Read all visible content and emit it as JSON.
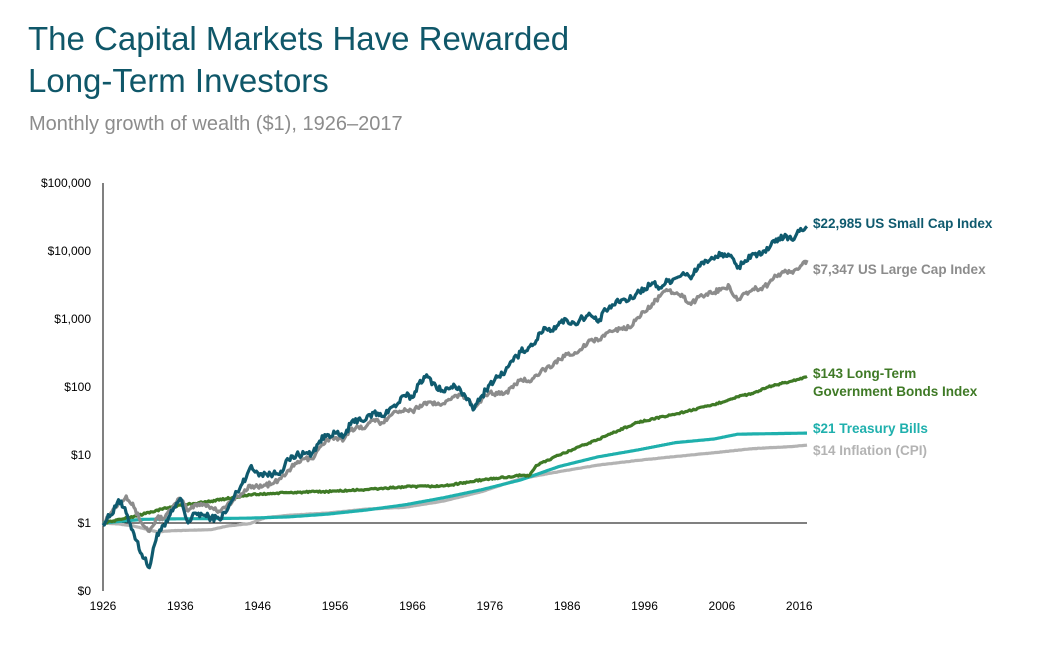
{
  "header": {
    "title_line1": "The Capital Markets Have Rewarded",
    "title_line2": "Long-Term Investors",
    "subtitle": "Monthly growth of wealth ($1), 1926–2017"
  },
  "colors": {
    "small_cap": "#0f5a6e",
    "large_cap": "#8c8c8c",
    "bonds": "#3f7a26",
    "tbills": "#1fb0ad",
    "inflation": "#b3b3b3"
  },
  "chart_data": {
    "type": "line",
    "y_scale": "log",
    "ylim": [
      0.1,
      100000
    ],
    "xlim": [
      1926,
      2017
    ],
    "y_ticks": [
      {
        "value": 100000,
        "label": "$100,000"
      },
      {
        "value": 10000,
        "label": "$10,000"
      },
      {
        "value": 1000,
        "label": "$1,000"
      },
      {
        "value": 100,
        "label": "$100"
      },
      {
        "value": 10,
        "label": "$10"
      },
      {
        "value": 1,
        "label": "$1"
      },
      {
        "value": 0.1,
        "label": "$0"
      }
    ],
    "x_ticks": [
      "1926",
      "1936",
      "1946",
      "1956",
      "1966",
      "1976",
      "1986",
      "1996",
      "2006",
      "2016"
    ],
    "series": [
      {
        "key": "small_cap",
        "label_lines": [
          "$22,985 US Small Cap Index"
        ],
        "points": [
          [
            1926,
            1
          ],
          [
            1927,
            1.3
          ],
          [
            1928,
            2.2
          ],
          [
            1929,
            1.4
          ],
          [
            1930,
            0.7
          ],
          [
            1931,
            0.35
          ],
          [
            1932,
            0.22
          ],
          [
            1933,
            0.7
          ],
          [
            1934,
            0.9
          ],
          [
            1935,
            1.5
          ],
          [
            1936,
            2.3
          ],
          [
            1937,
            1.0
          ],
          [
            1938,
            1.4
          ],
          [
            1939,
            1.3
          ],
          [
            1940,
            1.2
          ],
          [
            1941,
            1.15
          ],
          [
            1942,
            1.5
          ],
          [
            1943,
            2.5
          ],
          [
            1944,
            3.8
          ],
          [
            1945,
            6.5
          ],
          [
            1946,
            5.5
          ],
          [
            1947,
            5.3
          ],
          [
            1948,
            5.2
          ],
          [
            1949,
            5.8
          ],
          [
            1950,
            8.5
          ],
          [
            1951,
            10
          ],
          [
            1952,
            10.5
          ],
          [
            1953,
            10.5
          ],
          [
            1954,
            16
          ],
          [
            1955,
            20
          ],
          [
            1956,
            21
          ],
          [
            1957,
            18
          ],
          [
            1958,
            28
          ],
          [
            1959,
            34
          ],
          [
            1960,
            33
          ],
          [
            1961,
            42
          ],
          [
            1962,
            37
          ],
          [
            1963,
            47
          ],
          [
            1964,
            55
          ],
          [
            1965,
            75
          ],
          [
            1966,
            70
          ],
          [
            1967,
            125
          ],
          [
            1968,
            140
          ],
          [
            1969,
            105
          ],
          [
            1970,
            85
          ],
          [
            1971,
            100
          ],
          [
            1972,
            100
          ],
          [
            1973,
            65
          ],
          [
            1974,
            48
          ],
          [
            1975,
            75
          ],
          [
            1976,
            110
          ],
          [
            1977,
            140
          ],
          [
            1978,
            170
          ],
          [
            1979,
            240
          ],
          [
            1980,
            330
          ],
          [
            1981,
            380
          ],
          [
            1982,
            480
          ],
          [
            1983,
            750
          ],
          [
            1984,
            680
          ],
          [
            1985,
            900
          ],
          [
            1986,
            950
          ],
          [
            1987,
            850
          ],
          [
            1988,
            1050
          ],
          [
            1989,
            1150
          ],
          [
            1990,
            900
          ],
          [
            1991,
            1350
          ],
          [
            1992,
            1600
          ],
          [
            1993,
            1900
          ],
          [
            1994,
            1900
          ],
          [
            1995,
            2400
          ],
          [
            1996,
            2800
          ],
          [
            1997,
            3400
          ],
          [
            1998,
            2900
          ],
          [
            1999,
            3600
          ],
          [
            2000,
            4000
          ],
          [
            2001,
            4800
          ],
          [
            2002,
            3900
          ],
          [
            2003,
            6200
          ],
          [
            2004,
            7200
          ],
          [
            2005,
            7600
          ],
          [
            2006,
            9200
          ],
          [
            2007,
            8500
          ],
          [
            2008,
            5600
          ],
          [
            2009,
            7200
          ],
          [
            2010,
            9200
          ],
          [
            2011,
            8700
          ],
          [
            2012,
            10400
          ],
          [
            2013,
            15000
          ],
          [
            2014,
            15800
          ],
          [
            2015,
            14800
          ],
          [
            2016,
            19500
          ],
          [
            2017,
            22985
          ]
        ]
      },
      {
        "key": "large_cap",
        "label_lines": [
          "$7,347 US Large Cap Index"
        ],
        "points": [
          [
            1926,
            1
          ],
          [
            1927,
            1.4
          ],
          [
            1928,
            2.0
          ],
          [
            1929,
            2.5
          ],
          [
            1930,
            1.7
          ],
          [
            1931,
            1.0
          ],
          [
            1932,
            0.75
          ],
          [
            1933,
            1.2
          ],
          [
            1934,
            1.2
          ],
          [
            1935,
            1.7
          ],
          [
            1936,
            2.3
          ],
          [
            1937,
            1.5
          ],
          [
            1938,
            1.9
          ],
          [
            1939,
            1.9
          ],
          [
            1940,
            1.7
          ],
          [
            1941,
            1.5
          ],
          [
            1942,
            1.8
          ],
          [
            1943,
            2.2
          ],
          [
            1944,
            2.7
          ],
          [
            1945,
            3.6
          ],
          [
            1946,
            3.4
          ],
          [
            1947,
            3.6
          ],
          [
            1948,
            3.8
          ],
          [
            1949,
            4.5
          ],
          [
            1950,
            6.0
          ],
          [
            1951,
            7.5
          ],
          [
            1952,
            8.8
          ],
          [
            1953,
            8.8
          ],
          [
            1954,
            13
          ],
          [
            1955,
            17
          ],
          [
            1956,
            18
          ],
          [
            1957,
            16
          ],
          [
            1958,
            23
          ],
          [
            1959,
            26
          ],
          [
            1960,
            26
          ],
          [
            1961,
            33
          ],
          [
            1962,
            30
          ],
          [
            1963,
            37
          ],
          [
            1964,
            43
          ],
          [
            1965,
            48
          ],
          [
            1966,
            44
          ],
          [
            1967,
            54
          ],
          [
            1968,
            60
          ],
          [
            1969,
            55
          ],
          [
            1970,
            57
          ],
          [
            1971,
            66
          ],
          [
            1972,
            78
          ],
          [
            1973,
            67
          ],
          [
            1974,
            50
          ],
          [
            1975,
            68
          ],
          [
            1976,
            84
          ],
          [
            1977,
            78
          ],
          [
            1978,
            83
          ],
          [
            1979,
            98
          ],
          [
            1980,
            130
          ],
          [
            1981,
            123
          ],
          [
            1982,
            150
          ],
          [
            1983,
            183
          ],
          [
            1984,
            195
          ],
          [
            1985,
            256
          ],
          [
            1986,
            303
          ],
          [
            1987,
            320
          ],
          [
            1988,
            373
          ],
          [
            1989,
            491
          ],
          [
            1990,
            476
          ],
          [
            1991,
            621
          ],
          [
            1992,
            668
          ],
          [
            1993,
            735
          ],
          [
            1994,
            745
          ],
          [
            1995,
            1025
          ],
          [
            1996,
            1260
          ],
          [
            1997,
            1680
          ],
          [
            1998,
            2160
          ],
          [
            1999,
            2620
          ],
          [
            2000,
            2380
          ],
          [
            2001,
            2100
          ],
          [
            2002,
            1640
          ],
          [
            2003,
            2110
          ],
          [
            2004,
            2340
          ],
          [
            2005,
            2450
          ],
          [
            2006,
            2840
          ],
          [
            2007,
            3000
          ],
          [
            2008,
            1890
          ],
          [
            2009,
            2390
          ],
          [
            2010,
            2750
          ],
          [
            2011,
            2810
          ],
          [
            2012,
            3260
          ],
          [
            2013,
            4310
          ],
          [
            2014,
            4900
          ],
          [
            2015,
            4970
          ],
          [
            2016,
            5560
          ],
          [
            2017,
            7347
          ]
        ]
      },
      {
        "key": "bonds",
        "label_lines": [
          "$143 Long-Term",
          "Government Bonds Index"
        ],
        "points": [
          [
            1926,
            1
          ],
          [
            1930,
            1.25
          ],
          [
            1935,
            1.75
          ],
          [
            1940,
            2.1
          ],
          [
            1945,
            2.6
          ],
          [
            1950,
            2.8
          ],
          [
            1955,
            2.9
          ],
          [
            1960,
            3.1
          ],
          [
            1965,
            3.4
          ],
          [
            1970,
            3.5
          ],
          [
            1975,
            4.3
          ],
          [
            1980,
            5.0
          ],
          [
            1981,
            4.9
          ],
          [
            1982,
            7.0
          ],
          [
            1985,
            10
          ],
          [
            1990,
            17
          ],
          [
            1995,
            30
          ],
          [
            2000,
            40
          ],
          [
            2005,
            55
          ],
          [
            2008,
            72
          ],
          [
            2010,
            80
          ],
          [
            2012,
            100
          ],
          [
            2014,
            115
          ],
          [
            2016,
            130
          ],
          [
            2017,
            143
          ]
        ]
      },
      {
        "key": "tbills",
        "label_lines": [
          "$21 Treasury Bills"
        ],
        "points": [
          [
            1926,
            1
          ],
          [
            1931,
            1.13
          ],
          [
            1935,
            1.15
          ],
          [
            1940,
            1.16
          ],
          [
            1945,
            1.18
          ],
          [
            1950,
            1.23
          ],
          [
            1955,
            1.35
          ],
          [
            1960,
            1.55
          ],
          [
            1965,
            1.85
          ],
          [
            1970,
            2.35
          ],
          [
            1975,
            3.1
          ],
          [
            1980,
            4.3
          ],
          [
            1985,
            6.8
          ],
          [
            1990,
            9.4
          ],
          [
            1995,
            11.8
          ],
          [
            2000,
            15.2
          ],
          [
            2005,
            17.2
          ],
          [
            2008,
            20.2
          ],
          [
            2010,
            20.4
          ],
          [
            2017,
            21
          ]
        ]
      },
      {
        "key": "inflation",
        "label_lines": [
          "$14 Inflation (CPI)"
        ],
        "points": [
          [
            1926,
            1
          ],
          [
            1928,
            0.97
          ],
          [
            1930,
            0.9
          ],
          [
            1933,
            0.74
          ],
          [
            1935,
            0.77
          ],
          [
            1940,
            0.8
          ],
          [
            1942,
            0.9
          ],
          [
            1945,
            0.98
          ],
          [
            1947,
            1.2
          ],
          [
            1950,
            1.3
          ],
          [
            1955,
            1.4
          ],
          [
            1960,
            1.6
          ],
          [
            1965,
            1.7
          ],
          [
            1970,
            2.1
          ],
          [
            1975,
            2.9
          ],
          [
            1980,
            4.5
          ],
          [
            1985,
            5.7
          ],
          [
            1990,
            7.1
          ],
          [
            1995,
            8.3
          ],
          [
            2000,
            9.5
          ],
          [
            2005,
            10.8
          ],
          [
            2010,
            12.4
          ],
          [
            2015,
            13.3
          ],
          [
            2017,
            14
          ]
        ]
      }
    ]
  }
}
